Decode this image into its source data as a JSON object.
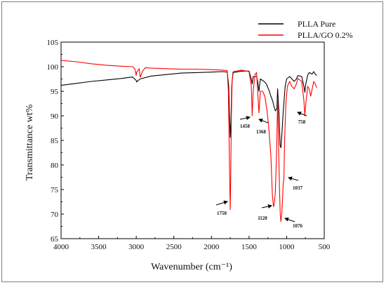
{
  "chart_data": {
    "type": "line",
    "title": "",
    "xlabel": "Wavenumber (cm⁻¹)",
    "ylabel": "Transmittance wt%",
    "xlim": [
      4000,
      500
    ],
    "ylim": [
      65,
      105
    ],
    "x_ticks": [
      "4000",
      "3500",
      "3000",
      "2500",
      "2000",
      "1500",
      "1000",
      "500"
    ],
    "y_ticks": [
      "65",
      "70",
      "75",
      "80",
      "85",
      "90",
      "95",
      "100",
      "105"
    ],
    "legend_position": "top-right",
    "grid": false,
    "series": [
      {
        "name": "PLLA Pure",
        "color": "#000000",
        "points": [
          [
            4000,
            96.2
          ],
          [
            3800,
            96.6
          ],
          [
            3600,
            97.0
          ],
          [
            3400,
            97.3
          ],
          [
            3200,
            97.6
          ],
          [
            3050,
            97.9
          ],
          [
            3000,
            97.2
          ],
          [
            2995,
            96.9
          ],
          [
            2950,
            97.5
          ],
          [
            2800,
            98.1
          ],
          [
            2600,
            98.4
          ],
          [
            2400,
            98.7
          ],
          [
            2200,
            98.8
          ],
          [
            2000,
            98.9
          ],
          [
            1850,
            99.0
          ],
          [
            1790,
            98.9
          ],
          [
            1770,
            96.0
          ],
          [
            1760,
            90.0
          ],
          [
            1750,
            85.6
          ],
          [
            1740,
            89.0
          ],
          [
            1730,
            96.0
          ],
          [
            1715,
            98.8
          ],
          [
            1600,
            99.1
          ],
          [
            1500,
            99.1
          ],
          [
            1470,
            97.5
          ],
          [
            1458,
            96.5
          ],
          [
            1445,
            98.0
          ],
          [
            1400,
            98.0
          ],
          [
            1385,
            97.0
          ],
          [
            1368,
            95.0
          ],
          [
            1350,
            97.5
          ],
          [
            1300,
            97.0
          ],
          [
            1270,
            96.5
          ],
          [
            1230,
            95.0
          ],
          [
            1210,
            94.0
          ],
          [
            1185,
            93.0
          ],
          [
            1170,
            92.0
          ],
          [
            1150,
            91.0
          ],
          [
            1130,
            91.5
          ],
          [
            1120,
            95.5
          ],
          [
            1100,
            90.0
          ],
          [
            1087,
            84.0
          ],
          [
            1076,
            83.5
          ],
          [
            1060,
            87.0
          ],
          [
            1045,
            91.0
          ],
          [
            1037,
            92.5
          ],
          [
            1020,
            96.0
          ],
          [
            1000,
            97.5
          ],
          [
            960,
            98.0
          ],
          [
            930,
            97.5
          ],
          [
            900,
            97.0
          ],
          [
            870,
            97.5
          ],
          [
            850,
            98.2
          ],
          [
            800,
            98.0
          ],
          [
            770,
            96.0
          ],
          [
            758,
            94.8
          ],
          [
            745,
            96.5
          ],
          [
            720,
            98.3
          ],
          [
            700,
            98.8
          ],
          [
            660,
            98.5
          ],
          [
            640,
            99.0
          ],
          [
            620,
            98.5
          ],
          [
            600,
            98.2
          ]
        ]
      },
      {
        "name": "PLLA/GO 0.2%",
        "color": "#ff0000",
        "points": [
          [
            4000,
            101.3
          ],
          [
            3800,
            101.0
          ],
          [
            3600,
            100.6
          ],
          [
            3400,
            100.3
          ],
          [
            3200,
            100.1
          ],
          [
            3050,
            100.0
          ],
          [
            3020,
            99.6
          ],
          [
            3000,
            98.2
          ],
          [
            2995,
            98.9
          ],
          [
            2960,
            99.6
          ],
          [
            2950,
            98.0
          ],
          [
            2945,
            97.9
          ],
          [
            2920,
            99.0
          ],
          [
            2880,
            99.8
          ],
          [
            2800,
            99.7
          ],
          [
            2600,
            99.6
          ],
          [
            2400,
            99.5
          ],
          [
            2200,
            99.5
          ],
          [
            2000,
            99.4
          ],
          [
            1850,
            99.3
          ],
          [
            1790,
            99.2
          ],
          [
            1775,
            95.0
          ],
          [
            1765,
            85.0
          ],
          [
            1755,
            75.0
          ],
          [
            1750,
            70.9
          ],
          [
            1745,
            76.0
          ],
          [
            1735,
            90.0
          ],
          [
            1725,
            97.0
          ],
          [
            1710,
            99.0
          ],
          [
            1600,
            99.3
          ],
          [
            1500,
            99.0
          ],
          [
            1470,
            96.0
          ],
          [
            1458,
            90.0
          ],
          [
            1445,
            95.0
          ],
          [
            1420,
            98.5
          ],
          [
            1400,
            98.8
          ],
          [
            1385,
            95.0
          ],
          [
            1368,
            90.6
          ],
          [
            1350,
            95.0
          ],
          [
            1320,
            95.0
          ],
          [
            1290,
            94.0
          ],
          [
            1260,
            91.0
          ],
          [
            1240,
            88.0
          ],
          [
            1210,
            82.0
          ],
          [
            1190,
            74.0
          ],
          [
            1175,
            71.5
          ],
          [
            1165,
            72.0
          ],
          [
            1150,
            74.5
          ],
          [
            1140,
            79.5
          ],
          [
            1130,
            85.0
          ],
          [
            1120,
            93.5
          ],
          [
            1110,
            86.0
          ],
          [
            1095,
            75.0
          ],
          [
            1085,
            70.0
          ],
          [
            1076,
            68.5
          ],
          [
            1065,
            70.0
          ],
          [
            1055,
            73.0
          ],
          [
            1045,
            76.5
          ],
          [
            1037,
            77.0
          ],
          [
            1025,
            86.0
          ],
          [
            1010,
            92.5
          ],
          [
            990,
            96.0
          ],
          [
            960,
            97.0
          ],
          [
            930,
            96.0
          ],
          [
            900,
            95.5
          ],
          [
            870,
            96.5
          ],
          [
            850,
            97.6
          ],
          [
            800,
            97.0
          ],
          [
            770,
            93.0
          ],
          [
            758,
            90.0
          ],
          [
            745,
            92.5
          ],
          [
            720,
            96.0
          ],
          [
            700,
            95.5
          ],
          [
            680,
            94.0
          ],
          [
            660,
            95.5
          ],
          [
            640,
            97.0
          ],
          [
            620,
            96.5
          ],
          [
            600,
            95.7
          ]
        ]
      }
    ],
    "annotations": [
      {
        "label": "1750",
        "x": 1750
      },
      {
        "label": "1458",
        "x": 1458
      },
      {
        "label": "1368",
        "x": 1368
      },
      {
        "label": "1120",
        "x": 1120
      },
      {
        "label": "1076",
        "x": 1076
      },
      {
        "label": "1037",
        "x": 1037
      },
      {
        "label": "758",
        "x": 758
      }
    ]
  }
}
